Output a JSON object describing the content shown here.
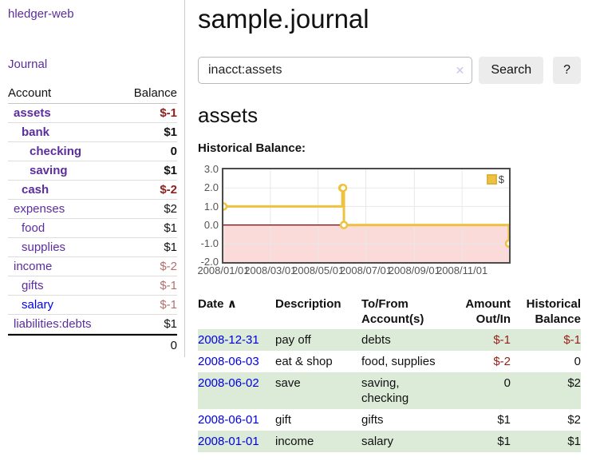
{
  "sidebar": {
    "brand": "hledger-web",
    "nav": {
      "journal": "Journal"
    },
    "accounts_table": {
      "headers": {
        "account": "Account",
        "balance": "Balance"
      },
      "rows": [
        {
          "name": "assets",
          "depth": 1,
          "bold": true,
          "balance": "$-1"
        },
        {
          "name": "bank",
          "depth": 2,
          "bold": true,
          "balance": "$1"
        },
        {
          "name": "checking",
          "depth": 3,
          "bold": true,
          "balance": "0"
        },
        {
          "name": "saving",
          "depth": 3,
          "bold": true,
          "balance": "$1"
        },
        {
          "name": "cash",
          "depth": 2,
          "bold": true,
          "balance": "$-2"
        },
        {
          "name": "expenses",
          "depth": 1,
          "bold": false,
          "balance": "$2"
        },
        {
          "name": "food",
          "depth": 2,
          "bold": false,
          "balance": "$1"
        },
        {
          "name": "supplies",
          "depth": 2,
          "bold": false,
          "balance": "$1"
        },
        {
          "name": "income",
          "depth": 1,
          "bold": false,
          "balance": "$-2"
        },
        {
          "name": "gifts",
          "depth": 2,
          "bold": false,
          "balance": "$-1"
        },
        {
          "name": "salary",
          "depth": 2,
          "bold": false,
          "balance": "$-1",
          "link": "blue"
        },
        {
          "name": "liabilities:debts",
          "depth": 1,
          "bold": false,
          "balance": "$1"
        }
      ],
      "total": "0"
    }
  },
  "main": {
    "title": "sample.journal",
    "search": {
      "query": "inacct:assets",
      "clear_icon": "✕",
      "button": "Search",
      "help_button": "?"
    },
    "account_heading": "assets",
    "chart_label": "Historical Balance:"
  },
  "chart_data": {
    "type": "line",
    "title": "Historical Balance:",
    "step": true,
    "xlim": [
      "2008-01-01",
      "2008-12-31"
    ],
    "ylim": [
      -2.0,
      3.0
    ],
    "y_ticks": [
      3.0,
      2.0,
      1.0,
      0.0,
      -1.0,
      -2.0
    ],
    "x_ticks": [
      "2008/01/01",
      "2008/03/01",
      "2008/05/01",
      "2008/07/01",
      "2008/09/01",
      "2008/11/01"
    ],
    "grid": true,
    "legend_position": "top-right",
    "series": [
      {
        "name": "$",
        "color": "#edc240",
        "points": [
          [
            "2008-01-01",
            1
          ],
          [
            "2008-06-01",
            2
          ],
          [
            "2008-06-02",
            2
          ],
          [
            "2008-06-03",
            0
          ],
          [
            "2008-12-31",
            -1
          ]
        ]
      }
    ],
    "negative_region_fill": "#fbdada",
    "zero_line_color": "#8b0000",
    "gridline_color": "#e8e8e8"
  },
  "register_table": {
    "headers": [
      "Date",
      "Description",
      "To/From Account(s)",
      "Amount Out/In",
      "Historical Balance"
    ],
    "sort_icon": "∧",
    "rows": [
      {
        "date": "2008-12-31",
        "description": "pay off",
        "accounts": "debts",
        "amount": "$-1",
        "historical": "$-1",
        "shade": true
      },
      {
        "date": "2008-06-03",
        "description": "eat & shop",
        "accounts": "food, supplies",
        "amount": "$-2",
        "historical": "0",
        "shade": false
      },
      {
        "date": "2008-06-02",
        "description": "save",
        "accounts": "saving,\nchecking",
        "amount": "0",
        "historical": "$2",
        "shade": true
      },
      {
        "date": "2008-06-01",
        "description": "gift",
        "accounts": "gifts",
        "amount": "$1",
        "historical": "$2",
        "shade": false
      },
      {
        "date": "2008-01-01",
        "description": "income",
        "accounts": "salary",
        "amount": "$1",
        "historical": "$1",
        "shade": true
      }
    ]
  },
  "colors": {
    "link_purple": "#5c2d9c",
    "link_blue": "#0000e0",
    "negative_strong": "#8e211b",
    "negative_muted": "#b2706f",
    "table_row_green": "#dcebd8",
    "series_gold": "#edc240"
  }
}
